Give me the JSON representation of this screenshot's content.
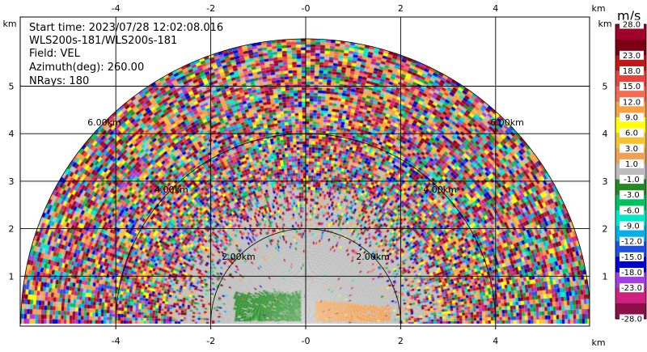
{
  "info": {
    "start_time": "Start time: 2023/07/28 12:02:08.016",
    "instrument": "WLS200s-181/WLS200s-181",
    "field": "Field: VEL",
    "azimuth": "Azimuth(deg): 260.00",
    "nrays": "NRays: 180"
  },
  "colorbar": {
    "units": "m/s",
    "levels": [
      "28.0",
      "23.0",
      "18.0",
      "15.0",
      "12.0",
      "9.0",
      "6.0",
      "3.0",
      "1.0",
      "-1.0",
      "-3.0",
      "-6.0",
      "-9.0",
      "-12.0",
      "-15.0",
      "-18.0",
      "-23.0",
      "-28.0"
    ],
    "colors": [
      "#a0002a",
      "#7d0012",
      "#c01818",
      "#e8453a",
      "#f46b50",
      "#ffa040",
      "#ffff00",
      "#f6c233",
      "#f0a050",
      "#bcbcbc",
      "#228b22",
      "#00c060",
      "#00e8c8",
      "#00b0e8",
      "#2050e0",
      "#0000d0",
      "#a040e0",
      "#d02080",
      "#8c1048"
    ]
  },
  "chart_data": {
    "type": "heatmap",
    "title": "",
    "xlabel": "km",
    "ylabel": "km",
    "xlim": [
      -6.0,
      6.0
    ],
    "ylim": [
      0.0,
      5.6
    ],
    "x_ticks": [
      "-4",
      "-2",
      "-0",
      "2",
      "4"
    ],
    "y_ticks": [
      "1",
      "2",
      "3",
      "4",
      "5"
    ],
    "range_rings_km": [
      2.0,
      4.0,
      6.0
    ],
    "range_ring_labels": [
      "2.00km",
      "4.00km",
      "6.00km"
    ],
    "max_range_km": 6.0,
    "grid": true,
    "velocity_field": {
      "near_negative_patch": {
        "x_km": [
          -1.5,
          -0.1
        ],
        "y_km": [
          0.05,
          0.6
        ],
        "value_ms": -2.0
      },
      "near_positive_patch": {
        "x_km": [
          0.2,
          1.8
        ],
        "y_km": [
          0.05,
          0.5
        ],
        "value_ms": 2.0
      },
      "low_velocity_zone_km": 2.0,
      "clutter_beyond_km": 2.2
    }
  }
}
